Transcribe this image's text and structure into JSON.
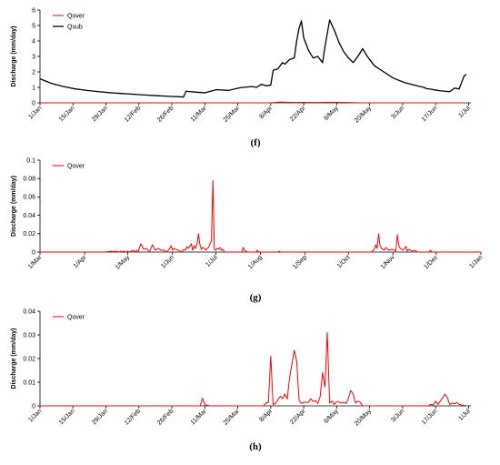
{
  "chart_data": [
    {
      "panel": "(f)",
      "type": "line",
      "ylabel": "Discharge (mm/day)",
      "ylim": [
        0,
        6
      ],
      "yticks": [
        "0",
        "1",
        "2",
        "3",
        "4",
        "5",
        "6"
      ],
      "xlim": [
        0,
        183
      ],
      "xtick_labels": [
        "1/Jan",
        "15/Jan",
        "29/Jan",
        "12/Feb",
        "26/Feb",
        "11/Mar",
        "25/Mar",
        "8/Apr",
        "22/Apr",
        "6/May",
        "20/May",
        "3/Jun",
        "17/Jun",
        "1/Jul"
      ],
      "xtick_positions": [
        0,
        14,
        28,
        42,
        56,
        70,
        84,
        98,
        112,
        126,
        140,
        154,
        168,
        182
      ],
      "legend": "top-left",
      "grid": false,
      "series": [
        {
          "name": "Qover",
          "color": "#ff0000",
          "x": [
            0,
            98,
            102,
            108,
            112,
            118,
            124,
            130,
            136,
            181
          ],
          "y": [
            0,
            0,
            0.05,
            0.02,
            0.03,
            0.02,
            0.04,
            0.02,
            0,
            0
          ]
        },
        {
          "name": "Qsub",
          "color": "#000000",
          "x": [
            0,
            5,
            10,
            15,
            20,
            25,
            30,
            35,
            40,
            45,
            50,
            55,
            61,
            62,
            67,
            70,
            75,
            80,
            85,
            90,
            92,
            94,
            96,
            98,
            99,
            101,
            103,
            104,
            106,
            108,
            109,
            110,
            111,
            112,
            114,
            116,
            118,
            120,
            121,
            123,
            125,
            127,
            129,
            131,
            133,
            135,
            137,
            139,
            142,
            146,
            150,
            155,
            160,
            163,
            164,
            166,
            168,
            170,
            172,
            174,
            176,
            178,
            180,
            181
          ],
          "y": [
            1.55,
            1.25,
            1.05,
            0.9,
            0.8,
            0.72,
            0.65,
            0.6,
            0.55,
            0.5,
            0.46,
            0.42,
            0.38,
            0.75,
            0.68,
            0.65,
            0.85,
            0.8,
            0.98,
            1.05,
            1.0,
            1.2,
            1.1,
            1.15,
            2.1,
            2.2,
            2.6,
            2.5,
            2.8,
            2.9,
            4.0,
            4.8,
            5.3,
            4.2,
            3.4,
            2.9,
            3.0,
            2.6,
            3.6,
            5.35,
            4.7,
            3.9,
            3.3,
            2.9,
            2.6,
            3.0,
            3.5,
            3.0,
            2.4,
            2.0,
            1.6,
            1.3,
            1.1,
            1.0,
            0.92,
            0.88,
            0.82,
            0.78,
            0.75,
            0.72,
            0.95,
            0.9,
            1.7,
            1.85
          ]
        }
      ]
    },
    {
      "panel": "(g)",
      "type": "line",
      "ylabel": "Discharge (mm/day)",
      "ylim": [
        0,
        0.1
      ],
      "yticks": [
        "0",
        "0.02",
        "0.04",
        "0.06",
        "0.08",
        "0.1"
      ],
      "xlim": [
        0,
        306
      ],
      "xtick_labels": [
        "1/Mar",
        "1/Apr",
        "1/May",
        "1/Jun",
        "1/Jul",
        "1/Aug",
        "1/Sep",
        "1/Oct",
        "1/Nov",
        "1/Dec",
        "1/Jan"
      ],
      "xtick_positions": [
        0,
        31,
        61,
        92,
        122,
        153,
        184,
        214,
        245,
        275,
        306
      ],
      "legend": "top-left",
      "grid": false,
      "series": [
        {
          "name": "Qover",
          "color": "#ff0000",
          "x": [
            0,
            45,
            50,
            51,
            52,
            55,
            56,
            57,
            58,
            60,
            61,
            62,
            65,
            66,
            67,
            68,
            70,
            72,
            74,
            76,
            78,
            80,
            82,
            84,
            86,
            88,
            90,
            91,
            92,
            93,
            94,
            96,
            98,
            100,
            101,
            102,
            103,
            105,
            106,
            107,
            108,
            109,
            110,
            111,
            112,
            113,
            114,
            115,
            116,
            117,
            118,
            119,
            120,
            121,
            122,
            123,
            124,
            125,
            126,
            127,
            128,
            140,
            141,
            142,
            143,
            144,
            150,
            151,
            152,
            165,
            166,
            167,
            230,
            232,
            233,
            234,
            235,
            236,
            237,
            238,
            239,
            240,
            242,
            244,
            246,
            247,
            248,
            249,
            250,
            252,
            254,
            255,
            256,
            258,
            260,
            262,
            270,
            271,
            272,
            306
          ],
          "y": [
            0,
            0,
            0.001,
            0,
            0.001,
            0,
            0.001,
            0,
            0.001,
            0,
            0.001,
            0,
            0.002,
            0,
            0.002,
            0,
            0.009,
            0.003,
            0.004,
            0,
            0.008,
            0.002,
            0.004,
            0.002,
            0.002,
            0,
            0.004,
            0.007,
            0.002,
            0.004,
            0.003,
            0.002,
            0,
            0.003,
            0.002,
            0.006,
            0.004,
            0.009,
            0.002,
            0.007,
            0.004,
            0.009,
            0.02,
            0.008,
            0.003,
            0.005,
            0.004,
            0.002,
            0.004,
            0.005,
            0.009,
            0.012,
            0.078,
            0.003,
            0.002,
            0.004,
            0.003,
            0.005,
            0.002,
            0.003,
            0,
            0,
            0.005,
            0.002,
            0.001,
            0,
            0,
            0.002,
            0,
            0,
            0.001,
            0,
            0,
            0.003,
            0.008,
            0.004,
            0.02,
            0.007,
            0.004,
            0.003,
            0.002,
            0.005,
            0.002,
            0.003,
            0.002,
            0.001,
            0.019,
            0.007,
            0.004,
            0.002,
            0.006,
            0.001,
            0.003,
            0.001,
            0.002,
            0,
            0,
            0.002,
            0,
            0
          ]
        }
      ]
    },
    {
      "panel": "(h)",
      "type": "line",
      "ylabel": "Discharge (mm/day)",
      "ylim": [
        0,
        0.04
      ],
      "yticks": [
        "0",
        "0.01",
        "0.02",
        "0.03",
        "0.04"
      ],
      "xlim": [
        0,
        183
      ],
      "xtick_labels": [
        "1/Jan",
        "15/Jan",
        "29/Jan",
        "12/Feb",
        "26/Feb",
        "11/Mar",
        "25/Mar",
        "8/Apr",
        "22/Apr",
        "6/May",
        "20/May",
        "3/Jun",
        "17/Jun",
        "1/Jul"
      ],
      "xtick_positions": [
        0,
        14,
        28,
        42,
        56,
        70,
        84,
        98,
        112,
        126,
        140,
        154,
        168,
        182
      ],
      "legend": "top-left",
      "grid": false,
      "series": [
        {
          "name": "Qover",
          "color": "#ff0000",
          "x": [
            0,
            68,
            69,
            70,
            72,
            84,
            95,
            96,
            97,
            98,
            99,
            100,
            102,
            103,
            104,
            105,
            106,
            108,
            109,
            110,
            111,
            112,
            114,
            115,
            116,
            117,
            118,
            119,
            120,
            121,
            122,
            123,
            124,
            125,
            126,
            128,
            129,
            130,
            131,
            132,
            133,
            134,
            135,
            136,
            137,
            140,
            165,
            166,
            167,
            168,
            169,
            170,
            172,
            173,
            174,
            175,
            176,
            177,
            178,
            181
          ],
          "y": [
            0,
            0,
            0.0032,
            0.0005,
            0,
            0,
            0,
            0.0012,
            0.0015,
            0.021,
            0.0005,
            0.001,
            0.004,
            0.003,
            0.005,
            0.0028,
            0.012,
            0.0235,
            0.019,
            0.0025,
            0.001,
            0.0015,
            0.0015,
            0.003,
            0.0018,
            0.0022,
            0.001,
            0.004,
            0.014,
            0.008,
            0.031,
            0.0012,
            0.002,
            0.0006,
            0.0018,
            0.0012,
            0.0015,
            0.001,
            0.0032,
            0.0065,
            0.005,
            0.0012,
            0.002,
            0.0015,
            0,
            0,
            0,
            0.0007,
            0.0003,
            0.002,
            0.0006,
            0.002,
            0.005,
            0.0035,
            0.0005,
            0.0012,
            0.0008,
            0.0015,
            0.0006,
            0
          ]
        }
      ]
    }
  ]
}
